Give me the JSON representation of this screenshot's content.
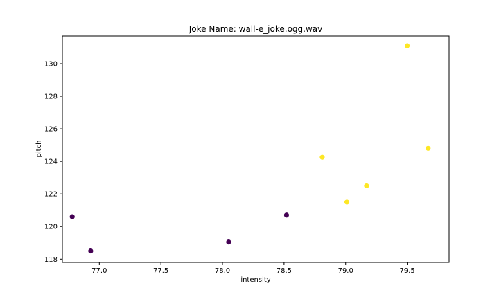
{
  "chart_data": {
    "type": "scatter",
    "title": "Joke Name: wall-e_joke.ogg.wav",
    "xlabel": "intensity",
    "ylabel": "pitch",
    "xlim": [
      76.7,
      79.84
    ],
    "ylim": [
      117.8,
      131.7
    ],
    "xticks": [
      77.0,
      77.5,
      78.0,
      78.5,
      79.0,
      79.5
    ],
    "xtick_labels": [
      "77.0",
      "77.5",
      "78.0",
      "78.5",
      "79.0",
      "79.5"
    ],
    "yticks": [
      118,
      120,
      122,
      124,
      126,
      128,
      130
    ],
    "ytick_labels": [
      "118",
      "120",
      "122",
      "124",
      "126",
      "128",
      "130"
    ],
    "grid": false,
    "legend": "none",
    "colors": {
      "cluster_0": "#440154",
      "cluster_1": "#fde725"
    },
    "points": [
      {
        "x": 76.78,
        "y": 120.6,
        "cluster": 0
      },
      {
        "x": 76.93,
        "y": 118.5,
        "cluster": 0
      },
      {
        "x": 78.05,
        "y": 119.05,
        "cluster": 0
      },
      {
        "x": 78.52,
        "y": 120.7,
        "cluster": 0
      },
      {
        "x": 78.81,
        "y": 124.25,
        "cluster": 1
      },
      {
        "x": 79.01,
        "y": 121.5,
        "cluster": 1
      },
      {
        "x": 79.17,
        "y": 122.5,
        "cluster": 1
      },
      {
        "x": 79.5,
        "y": 131.1,
        "cluster": 1
      },
      {
        "x": 79.67,
        "y": 124.8,
        "cluster": 1
      }
    ]
  }
}
